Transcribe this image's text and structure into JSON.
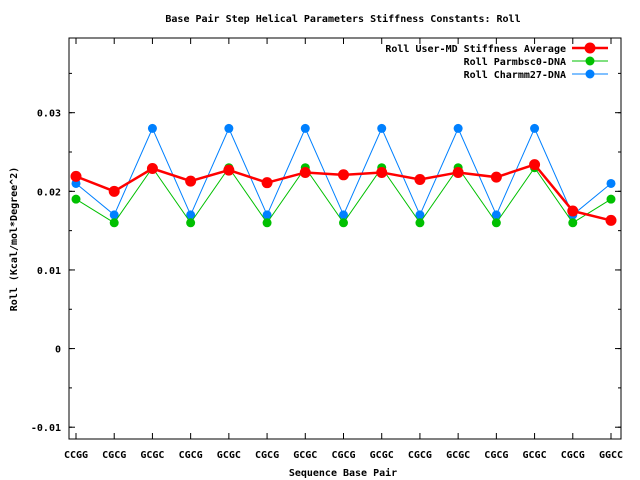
{
  "chart_data": {
    "type": "line",
    "title": "Base Pair Step Helical Parameters Stiffness Constants: Roll",
    "xlabel": "Sequence Base Pair",
    "ylabel": "Roll (Kcal/mol*Degree^2)",
    "ylim": [
      -0.0115,
      0.0395
    ],
    "yticks": [
      -0.01,
      0,
      0.01,
      0.02,
      0.03
    ],
    "ytick_labels": [
      "-0.01",
      "0",
      "0.01",
      "0.02",
      "0.03"
    ],
    "categories": [
      "CCGG",
      "CGCG",
      "GCGC",
      "CGCG",
      "GCGC",
      "CGCG",
      "GCGC",
      "CGCG",
      "GCGC",
      "CGCG",
      "GCGC",
      "CGCG",
      "GCGC",
      "CGCG",
      "GGCC"
    ],
    "legend_position": "top-right",
    "series": [
      {
        "name": "Roll User-MD Stiffness Average",
        "color": "#ff0000",
        "values": [
          0.0219,
          0.02,
          0.0229,
          0.0213,
          0.0227,
          0.0211,
          0.0224,
          0.0221,
          0.0224,
          0.0215,
          0.0224,
          0.0218,
          0.0234,
          0.0175,
          0.0163
        ]
      },
      {
        "name": "Roll Parmbsc0-DNA",
        "color": "#00c000",
        "values": [
          0.019,
          0.016,
          0.023,
          0.016,
          0.023,
          0.016,
          0.023,
          0.016,
          0.023,
          0.016,
          0.023,
          0.016,
          0.023,
          0.016,
          0.019
        ]
      },
      {
        "name": "Roll Charmm27-DNA",
        "color": "#0080ff",
        "values": [
          0.021,
          0.017,
          0.028,
          0.017,
          0.028,
          0.017,
          0.028,
          0.017,
          0.028,
          0.017,
          0.028,
          0.017,
          0.028,
          0.017,
          0.021
        ]
      }
    ]
  }
}
